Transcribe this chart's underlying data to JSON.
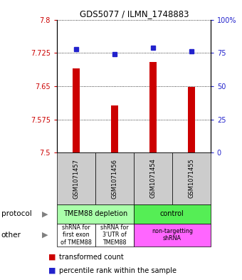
{
  "title": "GDS5077 / ILMN_1748883",
  "samples": [
    "GSM1071457",
    "GSM1071456",
    "GSM1071454",
    "GSM1071455"
  ],
  "bar_values": [
    7.69,
    7.607,
    7.705,
    7.648
  ],
  "percentile_values": [
    78,
    74,
    79,
    76
  ],
  "bar_bottom": 7.5,
  "ylim": [
    7.5,
    7.8
  ],
  "yticks_left": [
    7.5,
    7.575,
    7.65,
    7.725,
    7.8
  ],
  "yticks_right": [
    0,
    25,
    50,
    75,
    100
  ],
  "bar_color": "#cc0000",
  "dot_color": "#2222cc",
  "protocol_labels": [
    "TMEM88 depletion",
    "control"
  ],
  "protocol_colors": [
    "#aaffaa",
    "#55ee55"
  ],
  "other_labels": [
    "shRNA for\nfirst exon\nof TMEM88",
    "shRNA for\n3'UTR of\nTMEM88",
    "non-targetting\nshRNA"
  ],
  "other_colors": [
    "#ffffff",
    "#ffffff",
    "#ff66ff"
  ],
  "legend_bar_color": "#cc0000",
  "legend_dot_color": "#2222cc",
  "bar_width": 0.18
}
